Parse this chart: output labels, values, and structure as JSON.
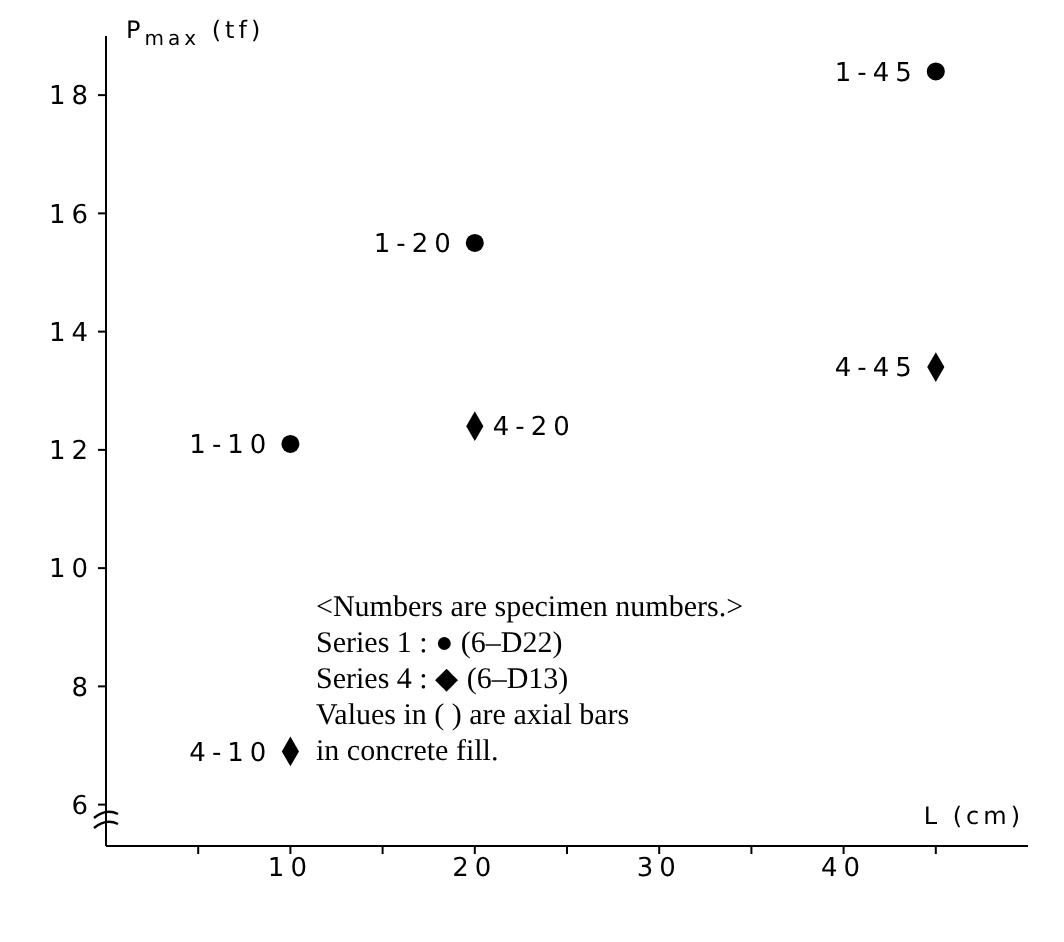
{
  "chart_data": {
    "type": "scatter",
    "xlabel": "L (cm)",
    "ylabel": "P$_{max}$ (tf)",
    "xlim": [
      0,
      50
    ],
    "ylim": [
      5.3,
      19
    ],
    "xticks": [
      {
        "value": 5,
        "label": null
      },
      10,
      {
        "value": 15,
        "label": null
      },
      20,
      {
        "value": 25,
        "label": null
      },
      30,
      {
        "value": 35,
        "label": null
      },
      40,
      {
        "value": 45,
        "label": null
      }
    ],
    "yticks": [
      6,
      8,
      10,
      12,
      14,
      16,
      18
    ],
    "grid": false,
    "legend": false,
    "series": [
      {
        "color": "#000000",
        "marker": "circle",
        "x": [
          10,
          20,
          45
        ],
        "values": [
          12.1,
          15.5,
          18.4
        ]
      },
      {
        "color": "#000000",
        "marker": "diamond",
        "x": [
          10,
          20,
          45
        ],
        "values": [
          6.9,
          12.4,
          13.4
        ]
      }
    ],
    "annotations": [
      {
        "text": "1-10",
        "x": 10,
        "y": 12.1
      },
      {
        "text": "1-20",
        "x": 20,
        "y": 15.5
      },
      {
        "text": "1-45",
        "x": 45,
        "y": 18.4
      },
      {
        "text": "4-10",
        "x": 10,
        "y": 6.9
      },
      {
        "text": "4-20",
        "x": 20,
        "y": 12.4
      },
      {
        "text": "4-45",
        "x": 45,
        "y": 13.4
      },
      "<Numbers are specimen numbers.>",
      "Series 1 : ● (6–D22)",
      "Series 4 : ◆ (6–D13)",
      "Values in ( ) are axial bars",
      "in concrete fill."
    ]
  }
}
